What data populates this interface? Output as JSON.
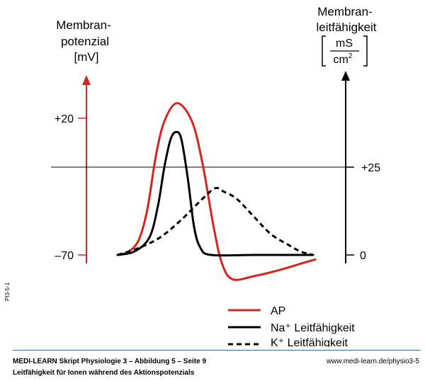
{
  "chart_data": {
    "type": "line",
    "left_axis": {
      "label_lines": [
        "Membran-",
        "potenzial",
        "[mV]"
      ],
      "ticks": [
        {
          "value": 20,
          "label": "+20"
        },
        {
          "value": -70,
          "label": "–70"
        }
      ],
      "color": "#d2261c"
    },
    "right_axis": {
      "label_lines": [
        "Membran-",
        "leitfähigkeit"
      ],
      "unit_numerator": "mS",
      "unit_denominator": "cm",
      "unit_denominator_sup": "2",
      "ticks": [
        {
          "value": 25,
          "label": "+25"
        },
        {
          "value": 0,
          "label": "0"
        }
      ],
      "color": "#000000"
    },
    "series": [
      {
        "name": "AP",
        "axis": "left",
        "color": "#d2261c",
        "style": "solid",
        "points": [
          [
            0,
            -70
          ],
          [
            0.25,
            -68
          ],
          [
            0.5,
            -60
          ],
          [
            0.7,
            -40
          ],
          [
            0.9,
            -5
          ],
          [
            1.1,
            18
          ],
          [
            1.4,
            30
          ],
          [
            1.75,
            18
          ],
          [
            2.0,
            -10
          ],
          [
            2.25,
            -50
          ],
          [
            2.45,
            -75
          ],
          [
            2.7,
            -86
          ],
          [
            3.2,
            -84
          ],
          [
            3.8,
            -80
          ],
          [
            4.4,
            -75
          ],
          [
            4.65,
            -73
          ]
        ]
      },
      {
        "name": "Na⁺ Leitfähigkeit",
        "axis": "right",
        "color": "#000000",
        "style": "solid",
        "points": [
          [
            0,
            0
          ],
          [
            0.4,
            1
          ],
          [
            0.75,
            5
          ],
          [
            0.95,
            14
          ],
          [
            1.1,
            25
          ],
          [
            1.25,
            33
          ],
          [
            1.38,
            35
          ],
          [
            1.5,
            33
          ],
          [
            1.65,
            22
          ],
          [
            1.8,
            8
          ],
          [
            1.95,
            2
          ],
          [
            2.2,
            0
          ],
          [
            3.2,
            0
          ],
          [
            4.6,
            0
          ]
        ]
      },
      {
        "name": "K⁺ Leitfähigkeit",
        "axis": "right",
        "color": "#000000",
        "style": "dashed",
        "points": [
          [
            0,
            0
          ],
          [
            0.5,
            2
          ],
          [
            1.0,
            5
          ],
          [
            1.5,
            10
          ],
          [
            2.0,
            16
          ],
          [
            2.3,
            19
          ],
          [
            2.5,
            18
          ],
          [
            2.8,
            16
          ],
          [
            3.2,
            11
          ],
          [
            3.6,
            6
          ],
          [
            4.0,
            3
          ],
          [
            4.3,
            1
          ],
          [
            4.6,
            0
          ]
        ]
      }
    ],
    "legend_placement": "bottom-right"
  },
  "footer": {
    "title": "MEDI-LEARN Skript Physiologie 3 – Abbildung 5 – Seite 9",
    "subtitle": "Leitfähigkeit für Ionen während des Aktionspotenzials",
    "url": "www.medi-learn.de/physio3-5",
    "side_code": "PI3-5-1"
  }
}
